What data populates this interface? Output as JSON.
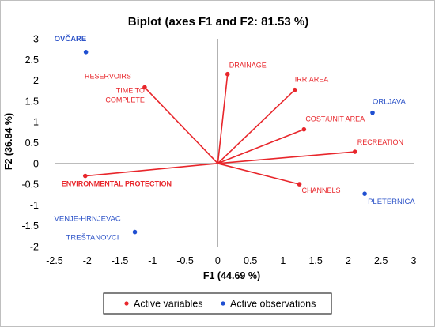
{
  "chart_data": {
    "type": "scatter",
    "title": "Biplot (axes F1 and F2: 81.53 %)",
    "xlabel": "F1 (44.69 %)",
    "ylabel": "F2 (36.84 %)",
    "xlim": [
      -2.5,
      3
    ],
    "ylim": [
      -2,
      3
    ],
    "xticks": [
      "-2.5",
      "-2",
      "-1.5",
      "-1",
      "-0.5",
      "0",
      "0.5",
      "1",
      "1.5",
      "2",
      "2.5",
      "3"
    ],
    "yticks": [
      "-2",
      "-1.5",
      "-1",
      "-0.5",
      "0",
      "0.5",
      "1",
      "1.5",
      "2",
      "2.5",
      "3"
    ],
    "grid": false,
    "legend_position": "bottom",
    "colors": {
      "variables": "#e8262b",
      "observations": "#1f4fd1"
    },
    "series": [
      {
        "name": "Active variables",
        "kind": "vector",
        "points": [
          {
            "label": "DRAINAGE",
            "x": 0.15,
            "y": 2.15
          },
          {
            "label": "IRR.AREA",
            "x": 1.18,
            "y": 1.77
          },
          {
            "label": "COST/UNIT AREA",
            "x": 1.32,
            "y": 0.82
          },
          {
            "label": "RECREATION",
            "x": 2.1,
            "y": 0.28
          },
          {
            "label": "CHANNELS",
            "x": 1.25,
            "y": -0.5
          },
          {
            "label": "ENVIRONMENTAL PROTECTION",
            "x": -2.03,
            "y": -0.3
          },
          {
            "label": "RESERVOIRS\nTIME TO\nCOMPLETE",
            "x": -1.12,
            "y": 1.83
          }
        ]
      },
      {
        "name": "Active observations",
        "kind": "point",
        "points": [
          {
            "label": "OVČARE",
            "x": -2.02,
            "y": 2.68
          },
          {
            "label": "ORLJAVA",
            "x": 2.37,
            "y": 1.22
          },
          {
            "label": "PLETERNICA",
            "x": 2.25,
            "y": -0.73
          },
          {
            "label": "VENJE-HRNJEVAC\nTREŠTANOVCI",
            "x": -1.27,
            "y": -1.65
          }
        ]
      }
    ]
  }
}
